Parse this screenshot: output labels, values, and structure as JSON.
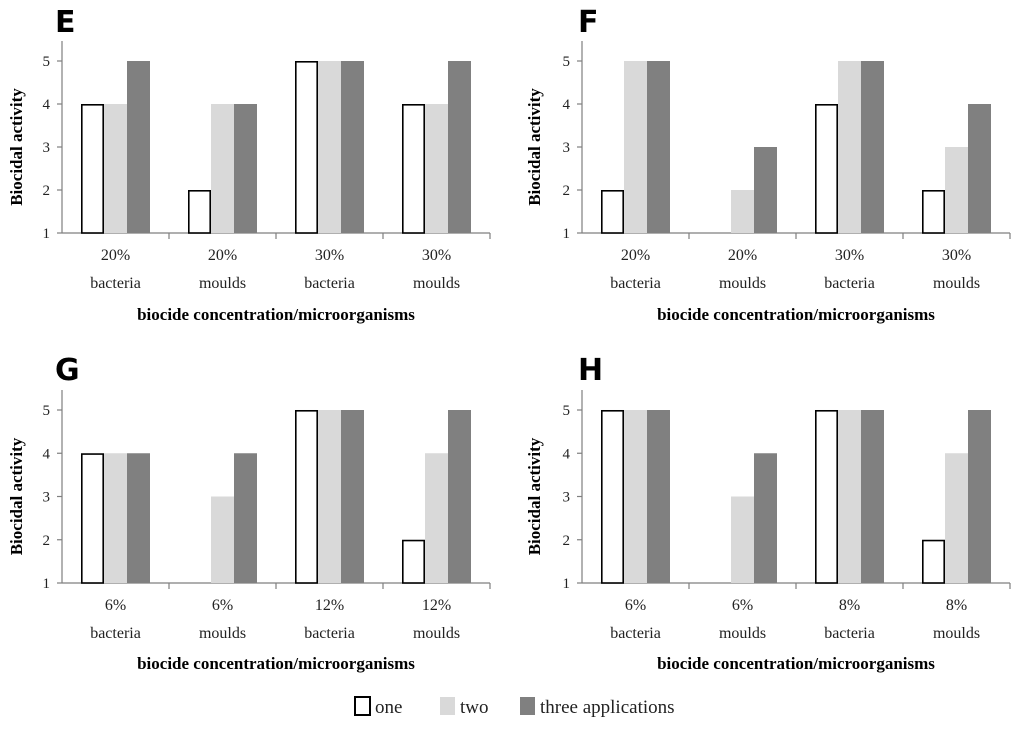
{
  "legend": {
    "items": [
      {
        "label": "one",
        "color": "#ffffff",
        "stroke": "#000000"
      },
      {
        "label": "two",
        "color": "#d9d9d9",
        "stroke": "#d9d9d9"
      },
      {
        "label": "three applications",
        "color": "#808080",
        "stroke": "#808080"
      }
    ]
  },
  "chart_data": [
    {
      "type": "bar",
      "panel": "E",
      "ylabel": "Biocidal activity",
      "xlabel": "biocide concentration/microorganisms",
      "ylim": [
        1,
        5
      ],
      "yticks": [
        1,
        2,
        3,
        4,
        5
      ],
      "categories": [
        [
          "20%",
          "bacteria"
        ],
        [
          "20%",
          "moulds"
        ],
        [
          "30%",
          "bacteria"
        ],
        [
          "30%",
          "moulds"
        ]
      ],
      "series": [
        {
          "name": "one",
          "values": [
            4,
            2,
            5,
            4
          ]
        },
        {
          "name": "two",
          "values": [
            4,
            4,
            5,
            4
          ]
        },
        {
          "name": "three applications",
          "values": [
            5,
            4,
            5,
            5
          ]
        }
      ]
    },
    {
      "type": "bar",
      "panel": "F",
      "ylabel": "Biocidal activity",
      "xlabel": "biocide concentration/microorganisms",
      "ylim": [
        1,
        5
      ],
      "yticks": [
        1,
        2,
        3,
        4,
        5
      ],
      "categories": [
        [
          "20%",
          "bacteria"
        ],
        [
          "20%",
          "moulds"
        ],
        [
          "30%",
          "bacteria"
        ],
        [
          "30%",
          "moulds"
        ]
      ],
      "series": [
        {
          "name": "one",
          "values": [
            2,
            1,
            4,
            2
          ]
        },
        {
          "name": "two",
          "values": [
            5,
            2,
            5,
            3
          ]
        },
        {
          "name": "three applications",
          "values": [
            5,
            3,
            5,
            4
          ]
        }
      ]
    },
    {
      "type": "bar",
      "panel": "G",
      "ylabel": "Biocidal activity",
      "xlabel": "biocide concentration/microorganisms",
      "ylim": [
        1,
        5
      ],
      "yticks": [
        1,
        2,
        3,
        4,
        5
      ],
      "categories": [
        [
          "6%",
          "bacteria"
        ],
        [
          "6%",
          "moulds"
        ],
        [
          "12%",
          "bacteria"
        ],
        [
          "12%",
          "moulds"
        ]
      ],
      "series": [
        {
          "name": "one",
          "values": [
            4,
            1,
            5,
            2
          ]
        },
        {
          "name": "two",
          "values": [
            4,
            3,
            5,
            4
          ]
        },
        {
          "name": "three applications",
          "values": [
            4,
            4,
            5,
            5
          ]
        }
      ]
    },
    {
      "type": "bar",
      "panel": "H",
      "ylabel": "Biocidal activity",
      "xlabel": "biocide concentration/microorganisms",
      "ylim": [
        1,
        5
      ],
      "yticks": [
        1,
        2,
        3,
        4,
        5
      ],
      "categories": [
        [
          "6%",
          "bacteria"
        ],
        [
          "6%",
          "moulds"
        ],
        [
          "8%",
          "bacteria"
        ],
        [
          "8%",
          "moulds"
        ]
      ],
      "series": [
        {
          "name": "one",
          "values": [
            5,
            1,
            5,
            2
          ]
        },
        {
          "name": "two",
          "values": [
            5,
            3,
            5,
            4
          ]
        },
        {
          "name": "three applications",
          "values": [
            5,
            4,
            5,
            5
          ]
        }
      ]
    }
  ]
}
